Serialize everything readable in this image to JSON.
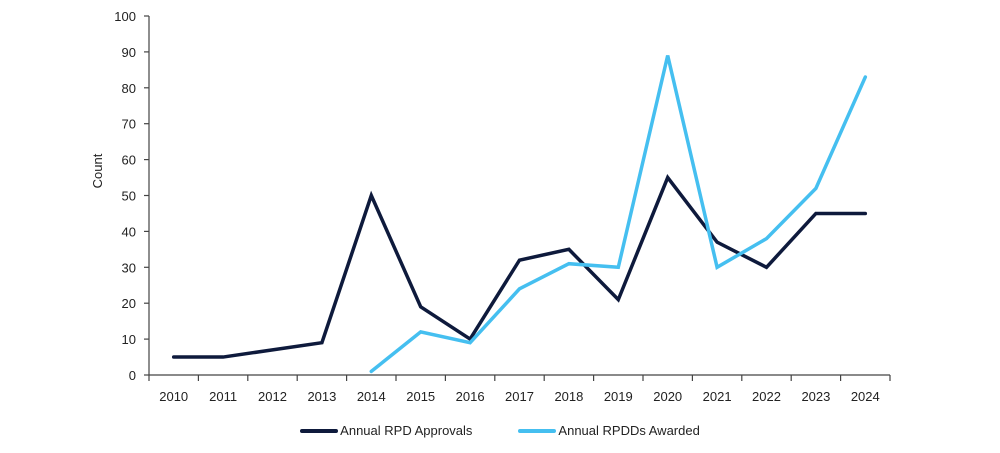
{
  "chart_data": {
    "type": "line",
    "title": "",
    "xlabel": "",
    "ylabel": "Count",
    "ylim": [
      0,
      100
    ],
    "yticks": [
      0,
      10,
      20,
      30,
      40,
      50,
      60,
      70,
      80,
      90,
      100
    ],
    "grid": false,
    "legend_position": "bottom",
    "categories": [
      "2010",
      "2011",
      "2012",
      "2013",
      "2014",
      "2015",
      "2016",
      "2017",
      "2018",
      "2019",
      "2020",
      "2021",
      "2022",
      "2023",
      "2024"
    ],
    "series": [
      {
        "name": "Annual RPD Approvals",
        "color": "#0e1a3c",
        "values": [
          5,
          5,
          7,
          9,
          50,
          19,
          10,
          32,
          35,
          21,
          55,
          37,
          30,
          45,
          45
        ]
      },
      {
        "name": "Annual RPDDs Awarded",
        "color": "#45bff0",
        "values": [
          null,
          null,
          null,
          null,
          1,
          12,
          9,
          24,
          31,
          30,
          89,
          30,
          38,
          52,
          83
        ]
      }
    ]
  }
}
